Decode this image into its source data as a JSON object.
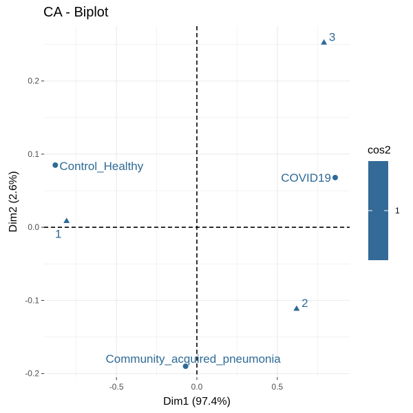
{
  "chart_data": {
    "type": "scatter",
    "title": "CA - Biplot",
    "xlabel": "Dim1 (97.4%)",
    "ylabel": "Dim2 (2.6%)",
    "xlim": [
      -0.95,
      0.95
    ],
    "ylim": [
      -0.205,
      0.275
    ],
    "x_ticks": [
      -0.5,
      0.0,
      0.5
    ],
    "x_tick_labels": [
      "-0.5",
      "0.0",
      "0.5"
    ],
    "y_ticks": [
      -0.2,
      -0.1,
      0.0,
      0.1,
      0.2
    ],
    "y_tick_labels": [
      "-0.2",
      "-0.1",
      "0.0",
      "0.1",
      "0.2"
    ],
    "grid": true,
    "reference_lines": {
      "x": 0,
      "y": 0,
      "style": "dashed"
    },
    "colors": {
      "points": "#2e6a96",
      "grid": "#ebebeb",
      "legend_fill": "#336a98"
    },
    "series": [
      {
        "marker": "circle",
        "points": [
          {
            "label": "Control_Healthy",
            "x": -0.88,
            "y": 0.085
          },
          {
            "label": "COVID19",
            "x": 0.86,
            "y": 0.068
          },
          {
            "label": "Community_acquired_pneumonia",
            "x": -0.07,
            "y": -0.19
          }
        ]
      },
      {
        "marker": "triangle",
        "points": [
          {
            "label": "1",
            "x": -0.81,
            "y": 0.009
          },
          {
            "label": "2",
            "x": 0.62,
            "y": -0.111
          },
          {
            "label": "3",
            "x": 0.79,
            "y": 0.253
          }
        ]
      }
    ],
    "legend": {
      "title": "cos2",
      "labels": [
        "1"
      ],
      "placement": "right"
    }
  }
}
